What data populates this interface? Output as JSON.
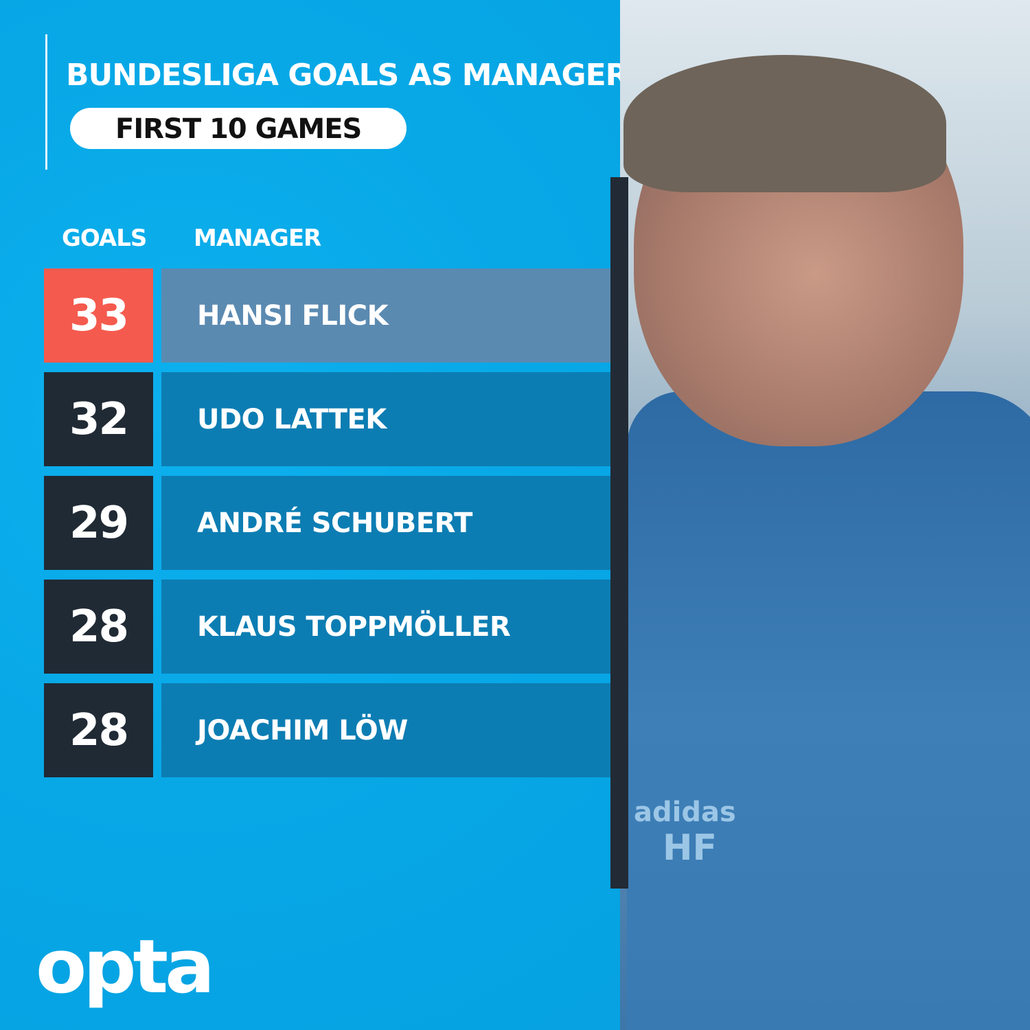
{
  "header": {
    "title": "BUNDESLIGA GOALS AS MANAGER",
    "subtitle": "FIRST 10 GAMES"
  },
  "columns": {
    "goals": "GOALS",
    "manager": "MANAGER"
  },
  "chart_data": {
    "type": "table",
    "title": "BUNDESLIGA GOALS AS MANAGER",
    "subtitle": "FIRST 10 GAMES",
    "columns": [
      "GOALS",
      "MANAGER"
    ],
    "rows": [
      {
        "goals": "33",
        "manager": "HANSI FLICK",
        "highlight": true
      },
      {
        "goals": "32",
        "manager": "UDO LATTEK",
        "highlight": false
      },
      {
        "goals": "29",
        "manager": "ANDRÉ SCHUBERT",
        "highlight": false
      },
      {
        "goals": "28",
        "manager": "KLAUS TOPPMÖLLER",
        "highlight": false
      },
      {
        "goals": "28",
        "manager": "JOACHIM LÖW",
        "highlight": false
      }
    ]
  },
  "colors": {
    "background": "#0aa9e8",
    "highlight_goal": "#f55a4e",
    "highlight_name": "#5b8ab1",
    "goal_box": "#202a35",
    "name_box": "#0c7db3"
  },
  "brand": {
    "logo": "opta"
  },
  "photo": {
    "jacket_text": [
      "adidas",
      "HF"
    ]
  }
}
